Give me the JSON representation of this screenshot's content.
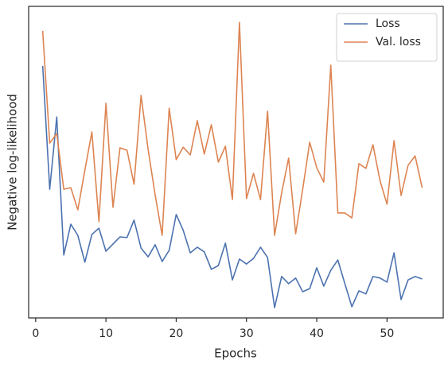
{
  "chart_data": {
    "type": "line",
    "xlabel": "Epochs",
    "ylabel": "Negative log-likelihood",
    "x": [
      1,
      2,
      3,
      4,
      5,
      6,
      7,
      8,
      9,
      10,
      11,
      12,
      13,
      14,
      15,
      16,
      17,
      18,
      19,
      20,
      21,
      22,
      23,
      24,
      25,
      26,
      27,
      28,
      29,
      30,
      31,
      32,
      33,
      34,
      35,
      36,
      37,
      38,
      39,
      40,
      41,
      42,
      43,
      44,
      45,
      46,
      47,
      48,
      49,
      50,
      51,
      52,
      53,
      54,
      55
    ],
    "series": [
      {
        "name": "Loss",
        "color": "#4c72b0",
        "values": [
          80.9,
          41.3,
          64.5,
          20.2,
          30.1,
          26.5,
          17.9,
          26.8,
          28.8,
          21.4,
          23.7,
          26.0,
          25.8,
          31.4,
          22.4,
          19.6,
          23.5,
          18.1,
          21.7,
          33.2,
          28.1,
          20.9,
          22.7,
          21.2,
          15.6,
          16.8,
          24.0,
          12.2,
          18.9,
          17.3,
          19.1,
          22.7,
          19.4,
          3.3,
          13.3,
          11.0,
          12.8,
          8.4,
          9.4,
          16.1,
          10.2,
          15.3,
          18.6,
          11.0,
          3.6,
          8.7,
          7.7,
          13.3,
          12.8,
          11.5,
          20.9,
          5.9,
          12.2,
          13.3,
          12.5
        ]
      },
      {
        "name": "Val. loss",
        "color": "#dd8452",
        "values": [
          92.1,
          56.1,
          59.2,
          41.3,
          41.8,
          34.7,
          47.4,
          59.7,
          30.9,
          68.9,
          35.5,
          54.6,
          53.8,
          42.9,
          71.4,
          54.1,
          39.5,
          26.5,
          67.3,
          50.8,
          54.8,
          52.3,
          63.3,
          52.6,
          62.0,
          50.0,
          55.1,
          38.0,
          94.9,
          38.3,
          46.4,
          38.0,
          66.3,
          26.5,
          40.1,
          51.3,
          27.0,
          41.3,
          56.4,
          48.2,
          43.6,
          81.1,
          33.7,
          33.7,
          32.1,
          49.5,
          48.0,
          55.6,
          44.1,
          36.5,
          56.9,
          39.3,
          49.0,
          52.0,
          41.8
        ]
      }
    ],
    "xlim": [
      -1,
      58
    ],
    "xticks": [
      0,
      10,
      20,
      30,
      40,
      50
    ],
    "ylim": [
      0,
      100
    ],
    "legend": "upper right"
  }
}
